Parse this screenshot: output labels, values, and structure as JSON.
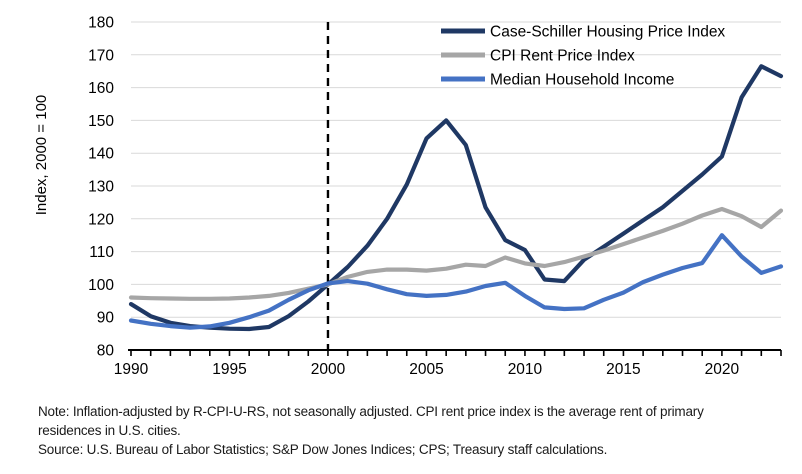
{
  "chart_data": {
    "type": "line",
    "title": "",
    "xlabel": "",
    "ylabel": "Index, 2000 = 100",
    "ylim": [
      80,
      180
    ],
    "yticks": [
      80,
      90,
      100,
      110,
      120,
      130,
      140,
      150,
      160,
      170,
      180
    ],
    "xlim": [
      1990,
      2023
    ],
    "xticks_labeled": [
      1990,
      1995,
      2000,
      2005,
      2010,
      2015,
      2020
    ],
    "minor_xticks_every_year": true,
    "grid": "horizontal",
    "legend_position": "top-right-inside",
    "reference_line": {
      "x": 2000,
      "style": "dashed",
      "color": "#000000"
    },
    "colors": {
      "grid": "#d9d9d9",
      "axis": "#000000",
      "case_schiller": "#1f3864",
      "cpi_rent": "#a6a6a6",
      "median_income": "#4472c4"
    },
    "x": [
      1990,
      1991,
      1992,
      1993,
      1994,
      1995,
      1996,
      1997,
      1998,
      1999,
      2000,
      2001,
      2002,
      2003,
      2004,
      2005,
      2006,
      2007,
      2008,
      2009,
      2010,
      2011,
      2012,
      2013,
      2014,
      2015,
      2016,
      2017,
      2018,
      2019,
      2020,
      2021,
      2022,
      2023
    ],
    "series": [
      {
        "name": "Case-Schiller Housing Price Index",
        "color": "#1f3864",
        "values": [
          94,
          90.3,
          88.3,
          87.3,
          86.8,
          86.5,
          86.4,
          87,
          90.3,
          94.8,
          100,
          105.3,
          111.8,
          120,
          130.5,
          144.5,
          150,
          142.5,
          123.5,
          113.5,
          110.5,
          101.5,
          101,
          107.5,
          111.5,
          115.5,
          119.5,
          123.5,
          128.5,
          133.5,
          139,
          157,
          166.5,
          163.5
        ]
      },
      {
        "name": "CPI Rent Price Index",
        "color": "#a6a6a6",
        "values": [
          96,
          95.8,
          95.7,
          95.6,
          95.6,
          95.7,
          96,
          96.5,
          97.4,
          98.7,
          100,
          102.3,
          103.8,
          104.5,
          104.5,
          104.2,
          104.8,
          106,
          105.6,
          108.2,
          106.4,
          105.6,
          106.8,
          108.5,
          110.3,
          112.3,
          114.3,
          116.3,
          118.5,
          121,
          123,
          120.8,
          117.5,
          122.5
        ]
      },
      {
        "name": "Median Household Income",
        "color": "#4472c4",
        "values": [
          89,
          88,
          87.3,
          86.8,
          87.2,
          88.3,
          90,
          92,
          95.3,
          98.2,
          100.3,
          101,
          100.2,
          98.5,
          97,
          96.5,
          96.8,
          97.8,
          99.5,
          100.5,
          96.5,
          93,
          92.5,
          92.7,
          95.3,
          97.5,
          100.7,
          103,
          105,
          106.5,
          115,
          108.5,
          103.5,
          105.5
        ]
      }
    ]
  },
  "notes": {
    "note": "Note: Inflation-adjusted by R-CPI-U-RS, not seasonally adjusted. CPI rent price index is the average rent of primary residences in U.S. cities.",
    "source": "Source: U.S. Bureau of Labor Statistics; S&P Dow Jones Indices; CPS; Treasury staff calculations."
  }
}
